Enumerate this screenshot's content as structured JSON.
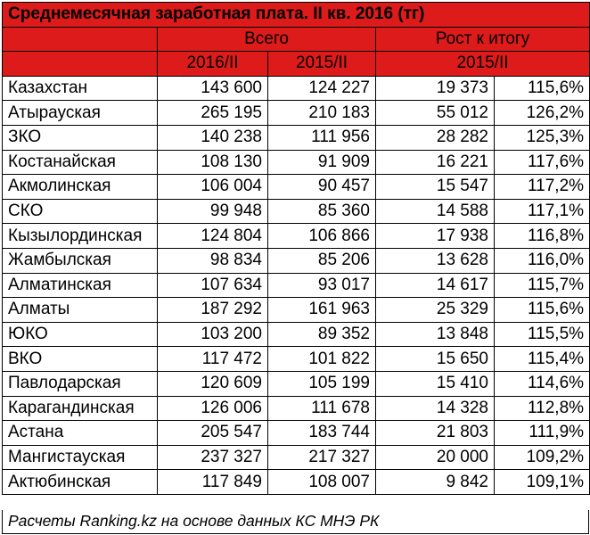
{
  "chart_data": {
    "type": "table",
    "title": "Среднемесячная заработная плата. II кв. 2016 (тг)",
    "group_headers": [
      "Всего",
      "Рост к итогу"
    ],
    "sub_headers": [
      "2016/II",
      "2015/II",
      "2015/II"
    ],
    "rows": [
      {
        "region": "Казахстан",
        "y2016": "143 600",
        "y2015": "124 227",
        "growth_abs": "19 373",
        "growth_pct": "115,6%"
      },
      {
        "region": "Атырауская",
        "y2016": "265 195",
        "y2015": "210 183",
        "growth_abs": "55 012",
        "growth_pct": "126,2%"
      },
      {
        "region": "ЗКО",
        "y2016": "140 238",
        "y2015": "111 956",
        "growth_abs": "28 282",
        "growth_pct": "125,3%"
      },
      {
        "region": "Костанайская",
        "y2016": "108 130",
        "y2015": "91 909",
        "growth_abs": "16 221",
        "growth_pct": "117,6%"
      },
      {
        "region": "Акмолинская",
        "y2016": "106 004",
        "y2015": "90 457",
        "growth_abs": "15 547",
        "growth_pct": "117,2%"
      },
      {
        "region": "СКО",
        "y2016": "99 948",
        "y2015": "85 360",
        "growth_abs": "14 588",
        "growth_pct": "117,1%"
      },
      {
        "region": "Кызылординская",
        "y2016": "124 804",
        "y2015": "106 866",
        "growth_abs": "17 938",
        "growth_pct": "116,8%"
      },
      {
        "region": "Жамбылская",
        "y2016": "98 834",
        "y2015": "85 206",
        "growth_abs": "13 628",
        "growth_pct": "116,0%"
      },
      {
        "region": "Алматинская",
        "y2016": "107 634",
        "y2015": "93 017",
        "growth_abs": "14 617",
        "growth_pct": "115,7%"
      },
      {
        "region": "Алматы",
        "y2016": "187 292",
        "y2015": "161 963",
        "growth_abs": "25 329",
        "growth_pct": "115,6%"
      },
      {
        "region": "ЮКО",
        "y2016": "103 200",
        "y2015": "89 352",
        "growth_abs": "13 848",
        "growth_pct": "115,5%"
      },
      {
        "region": "ВКО",
        "y2016": "117 472",
        "y2015": "101 822",
        "growth_abs": "15 650",
        "growth_pct": "115,4%"
      },
      {
        "region": "Павлодарская",
        "y2016": "120 609",
        "y2015": "105 199",
        "growth_abs": "15 410",
        "growth_pct": "114,6%"
      },
      {
        "region": "Карагандинская",
        "y2016": "126 006",
        "y2015": "111 678",
        "growth_abs": "14 328",
        "growth_pct": "112,8%"
      },
      {
        "region": "Астана",
        "y2016": "205 547",
        "y2015": "183 744",
        "growth_abs": "21 803",
        "growth_pct": "111,9%"
      },
      {
        "region": "Мангистауская",
        "y2016": "237 327",
        "y2015": "217 327",
        "growth_abs": "20 000",
        "growth_pct": "109,2%"
      },
      {
        "region": "Актюбинская",
        "y2016": "117 849",
        "y2015": "108 007",
        "growth_abs": "9 842",
        "growth_pct": "109,1%"
      }
    ],
    "footer": "Расчеты Ranking.kz на основе данных КС МНЭ РК",
    "colors": {
      "header_bg": "#dd1b1b",
      "header_text": "#ffffff",
      "border": "#000000"
    }
  }
}
